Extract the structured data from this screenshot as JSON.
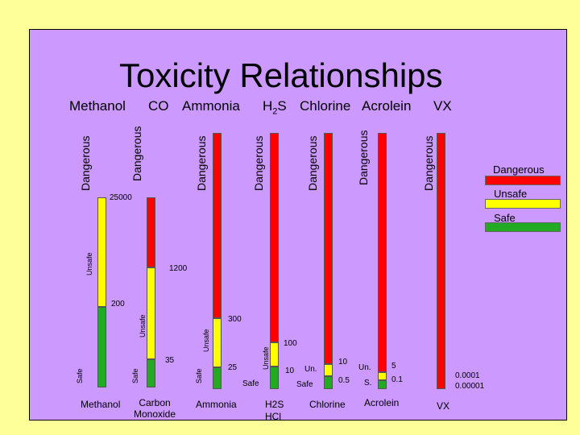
{
  "title": "Toxicity Relationships",
  "headers": {
    "methanol": "Methanol",
    "co": "CO",
    "ammonia": "Ammonia",
    "h2s_main": "H",
    "h2s_sub": "2",
    "h2s_end": "S",
    "chlorine": "Chlorine",
    "acrolein": "Acrolein",
    "vx": "VX"
  },
  "zone_labels": {
    "dangerous": "Dangerous",
    "unsafe": "Unsafe",
    "safe": "Safe"
  },
  "thresholds": {
    "methanol_danger": "25000",
    "methanol_unsafe": "200",
    "co_danger": "1200",
    "co_unsafe": "35",
    "ammonia_danger": "300",
    "ammonia_unsafe": "25",
    "h2s_danger": "100",
    "h2s_unsafe": "10",
    "chlorine_danger": "10",
    "chlorine_unsafe": "0.5",
    "acrolein_danger": "5",
    "acrolein_unsafe": "0.1",
    "vx_danger": "0.0001",
    "vx_unsafe": "0.00001"
  },
  "small_labels": {
    "un": "Un.",
    "un2": "Un.",
    "s": "S.",
    "safe": "Safe"
  },
  "bottom": {
    "methanol": "Methanol",
    "co_line1": "Carbon",
    "co_line2": "Monoxide",
    "ammonia": "Ammonia",
    "h2s_line1": "H2S",
    "h2s_line2": "HCl",
    "chlorine": "Chlorine",
    "acrolein": "Acrolein",
    "vx": "VX"
  },
  "legend": {
    "dangerous": "Dangerous",
    "unsafe": "Unsafe",
    "safe": "Safe"
  },
  "colors": {
    "dangerous": "#ff0000",
    "unsafe": "#ffff00",
    "safe": "#22aa22",
    "panel": "#cc99ff",
    "background": "#ffff99"
  }
}
